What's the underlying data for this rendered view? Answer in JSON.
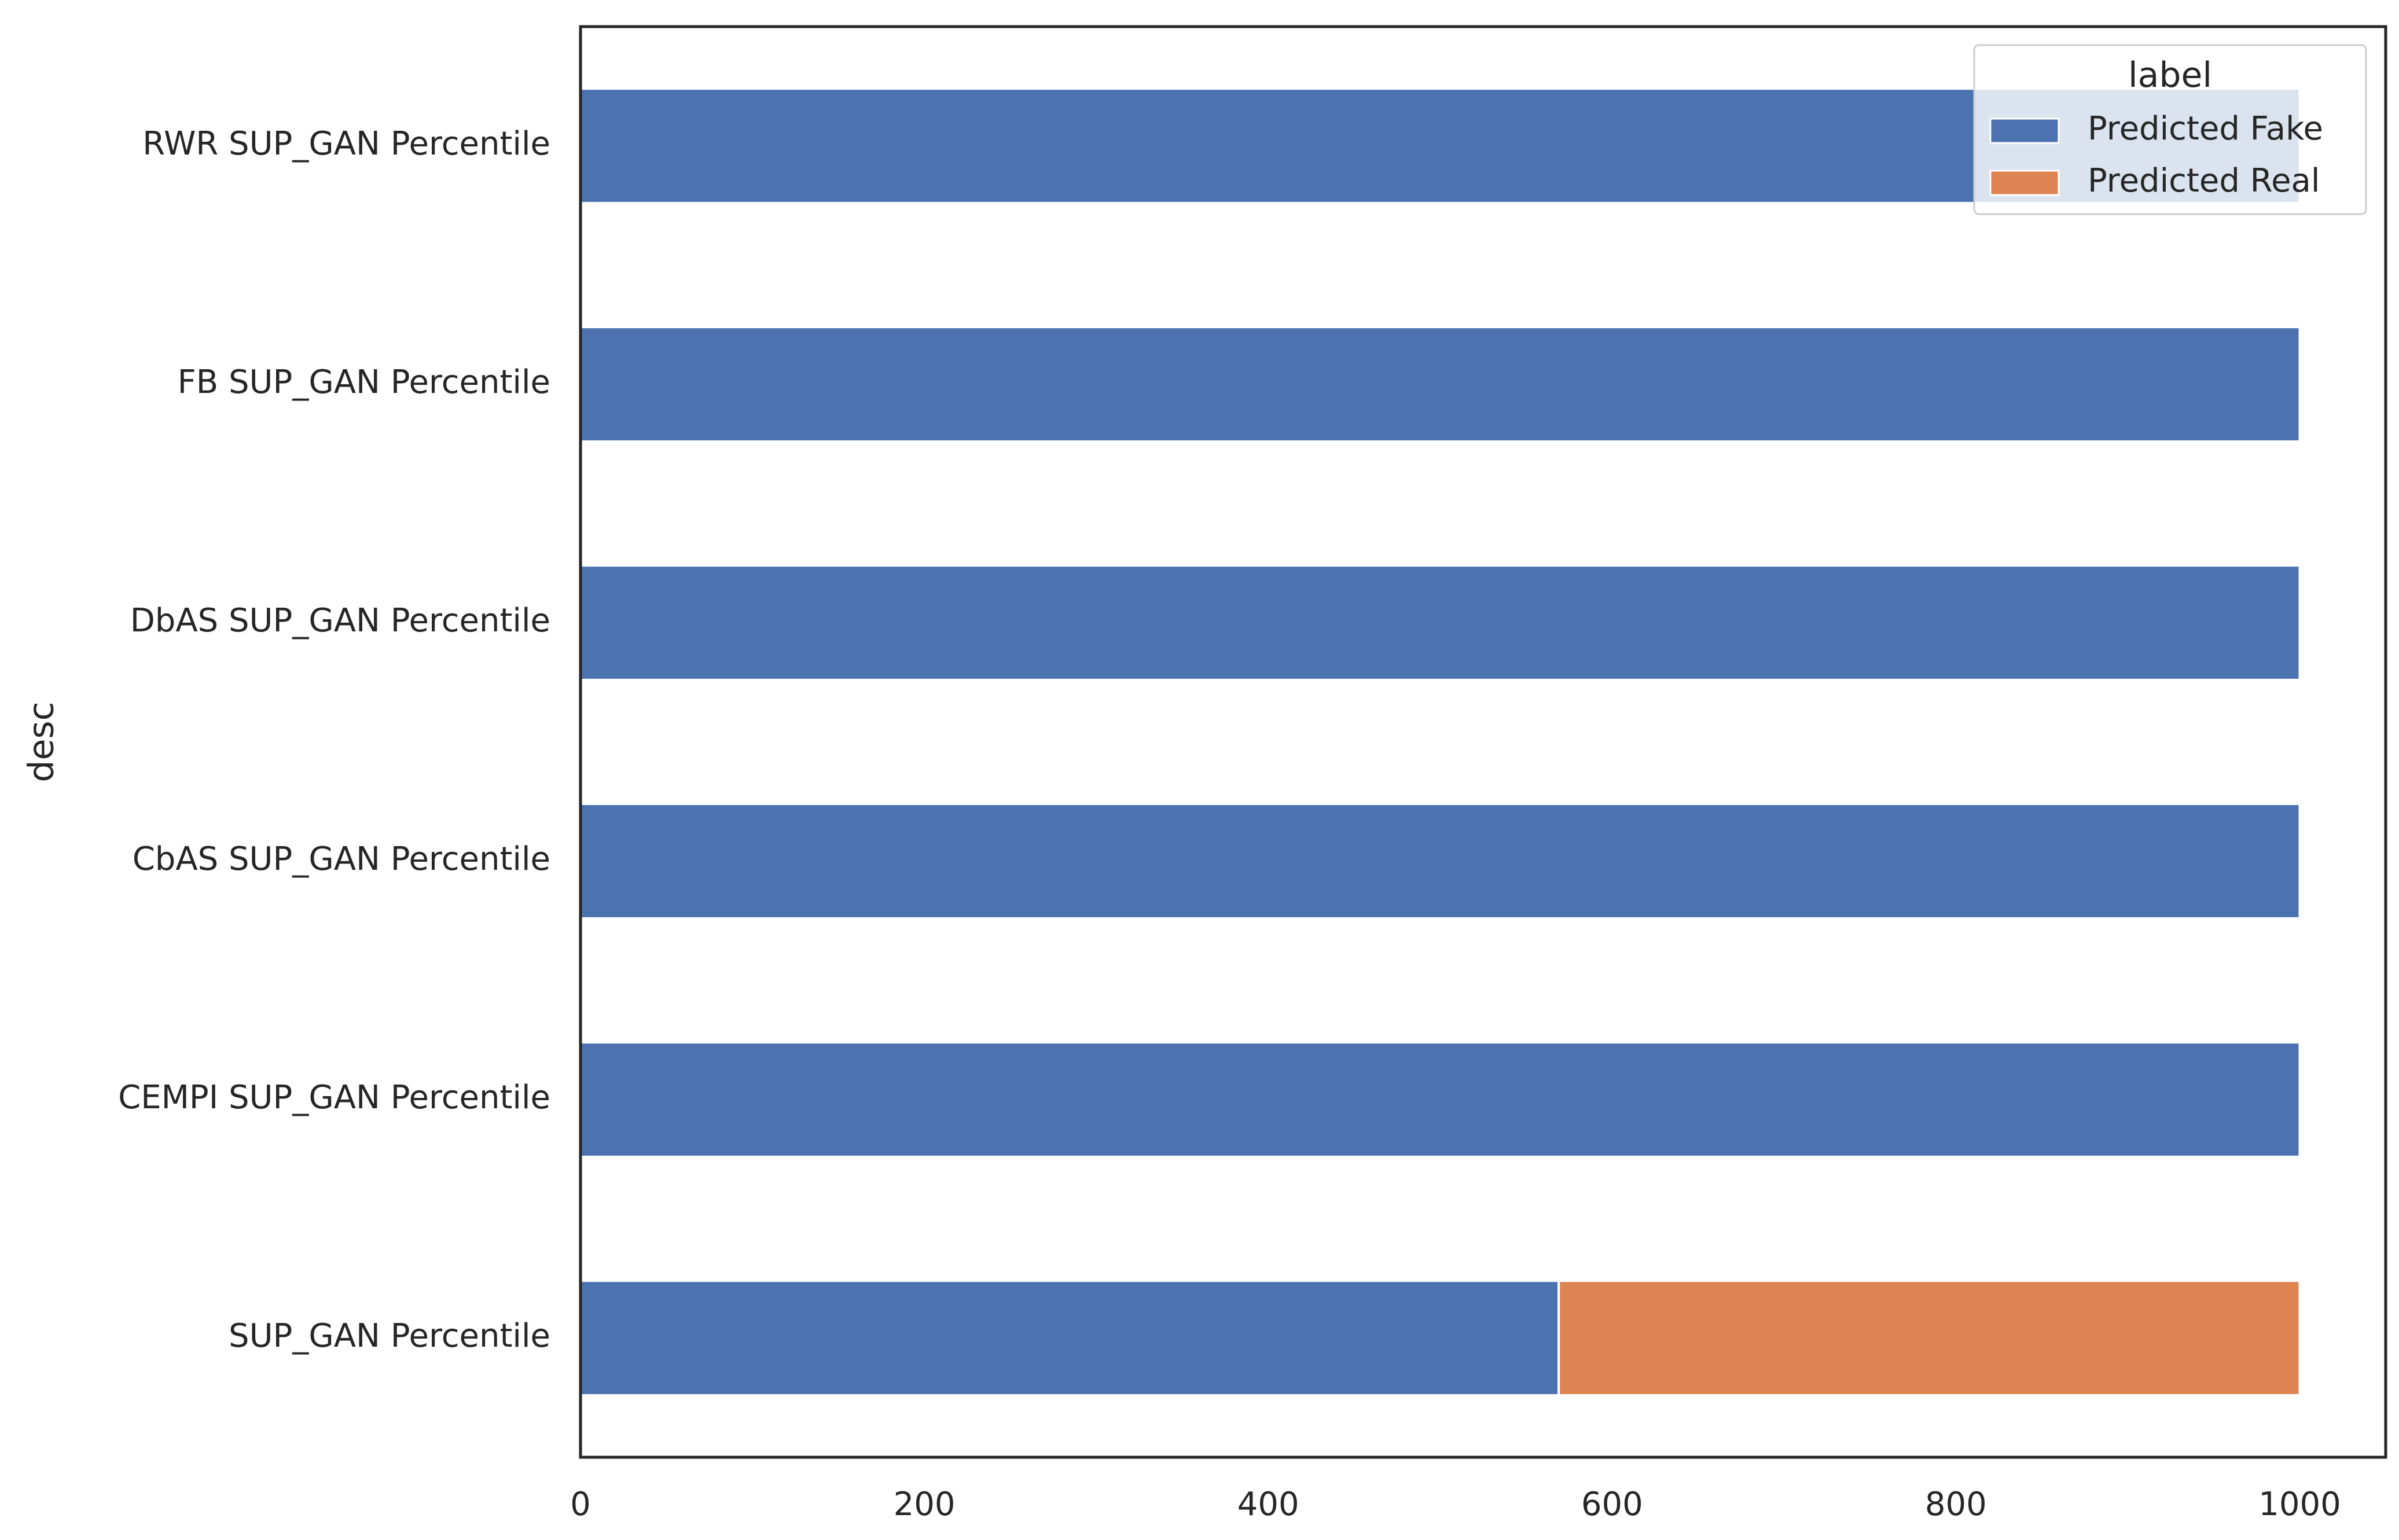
{
  "chart_data": {
    "type": "bar",
    "orientation": "horizontal",
    "stacked": true,
    "categories": [
      "RWR SUP_GAN Percentile",
      "FB SUP_GAN Percentile",
      "DbAS SUP_GAN Percentile",
      "CbAS SUP_GAN Percentile",
      "CEMPI SUP_GAN Percentile",
      "SUP_GAN Percentile"
    ],
    "series": [
      {
        "name": "Predicted Fake",
        "color": "#4c72b0",
        "values": [
          1000,
          1000,
          1000,
          1000,
          1000,
          569
        ]
      },
      {
        "name": "Predicted Real",
        "color": "#dd8452",
        "values": [
          0,
          0,
          0,
          0,
          0,
          431
        ]
      }
    ],
    "title": "",
    "xlabel": "",
    "ylabel": "desc",
    "xlim": [
      0,
      1050
    ],
    "xticks": [
      0,
      200,
      400,
      600,
      800,
      1000
    ],
    "grid": false,
    "legend": {
      "title": "label",
      "position": "top-right"
    }
  }
}
